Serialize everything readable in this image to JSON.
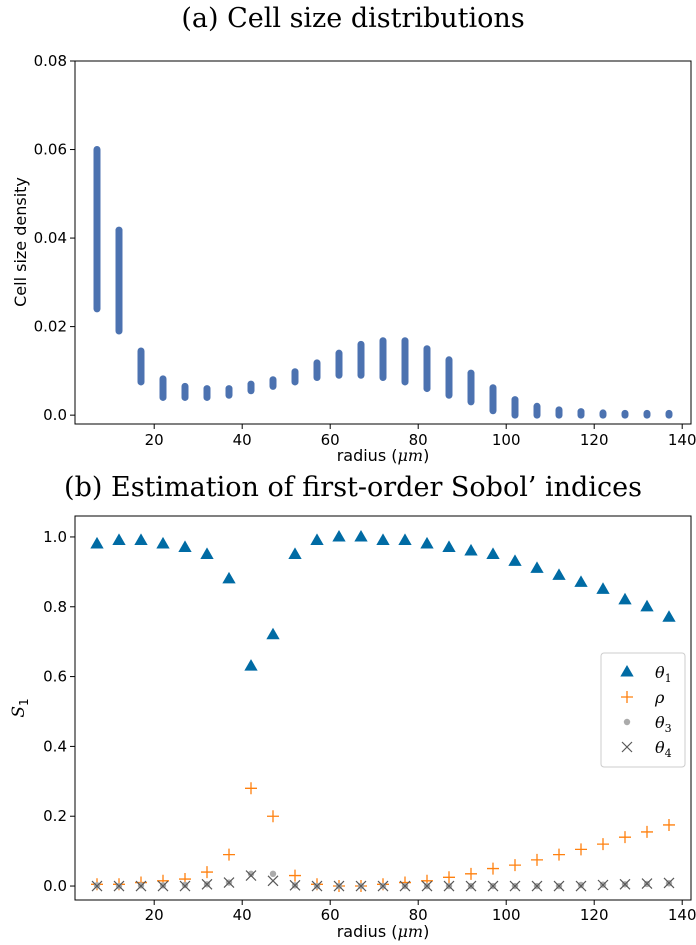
{
  "chart_data": [
    {
      "type": "scatter",
      "title": "(a) Cell size distributions",
      "xlabel": "radius (μm)",
      "ylabel": "Cell size density",
      "xlim": [
        2,
        142
      ],
      "ylim": [
        -0.002,
        0.08
      ],
      "xticks": [
        "20",
        "40",
        "60",
        "80",
        "100",
        "120",
        "140"
      ],
      "yticks": [
        "0.0",
        "0.02",
        "0.04",
        "0.06",
        "0.08"
      ],
      "color": "#4c72b0",
      "grid": false,
      "series": [
        {
          "x": [
            7,
            12,
            17,
            22,
            27,
            32,
            37,
            42,
            47,
            52,
            57,
            62,
            67,
            72,
            77,
            82,
            87,
            92,
            97,
            102,
            107,
            112,
            117,
            122,
            127,
            132,
            137
          ],
          "y_min": [
            0.024,
            0.019,
            0.0075,
            0.004,
            0.004,
            0.004,
            0.0045,
            0.0055,
            0.0065,
            0.0075,
            0.0085,
            0.009,
            0.009,
            0.0085,
            0.0075,
            0.006,
            0.0045,
            0.003,
            0.001,
            0.0,
            0.0,
            0.0,
            0.0,
            0.0,
            0.0,
            0.0,
            0.0
          ],
          "y_max": [
            0.06,
            0.0418,
            0.0145,
            0.0082,
            0.0065,
            0.006,
            0.006,
            0.007,
            0.008,
            0.0098,
            0.0118,
            0.014,
            0.016,
            0.0168,
            0.0168,
            0.015,
            0.0125,
            0.0095,
            0.0062,
            0.0035,
            0.002,
            0.0012,
            0.0008,
            0.0005,
            0.0004,
            0.0004,
            0.0004
          ]
        }
      ]
    },
    {
      "type": "scatter",
      "title": "(b) Estimation of first-order Sobol’ indices",
      "xlabel": "radius (μm)",
      "ylabel": "S1",
      "xlim": [
        2,
        142
      ],
      "ylim": [
        -0.04,
        1.06
      ],
      "xticks": [
        "20",
        "40",
        "60",
        "80",
        "100",
        "120",
        "140"
      ],
      "yticks": [
        "0.0",
        "0.2",
        "0.4",
        "0.6",
        "0.8",
        "1.0"
      ],
      "grid": false,
      "legend_position": "center-right",
      "x": [
        7,
        12,
        17,
        22,
        27,
        32,
        37,
        42,
        47,
        52,
        57,
        62,
        67,
        72,
        77,
        82,
        87,
        92,
        97,
        102,
        107,
        112,
        117,
        122,
        127,
        132,
        137
      ],
      "series": [
        {
          "name": "θ1",
          "marker": "triangle",
          "color": "#006ba4",
          "values": [
            0.98,
            0.99,
            0.99,
            0.98,
            0.97,
            0.95,
            0.88,
            0.63,
            0.72,
            0.95,
            0.99,
            1.0,
            1.0,
            0.99,
            0.99,
            0.98,
            0.97,
            0.96,
            0.95,
            0.93,
            0.91,
            0.89,
            0.87,
            0.85,
            0.82,
            0.8,
            0.77
          ]
        },
        {
          "name": "ρ",
          "marker": "plus",
          "color": "#ff800e",
          "values": [
            0.005,
            0.005,
            0.01,
            0.015,
            0.02,
            0.04,
            0.09,
            0.28,
            0.2,
            0.03,
            0.005,
            0.0,
            0.0,
            0.005,
            0.01,
            0.015,
            0.025,
            0.035,
            0.05,
            0.06,
            0.075,
            0.09,
            0.105,
            0.12,
            0.14,
            0.155,
            0.175
          ]
        },
        {
          "name": "θ3",
          "marker": "dot",
          "color": "#ababab",
          "values": [
            0.002,
            0.0,
            0.002,
            0.002,
            0.003,
            0.005,
            0.01,
            0.035,
            0.035,
            0.002,
            0.0,
            0.0,
            0.0,
            0.0,
            0.0,
            0.0,
            0.0,
            0.0,
            0.0,
            0.0,
            0.0,
            0.0,
            0.003,
            0.004,
            0.005,
            0.006,
            0.008
          ]
        },
        {
          "name": "θ4",
          "marker": "x",
          "color": "#595959",
          "values": [
            0.0,
            0.0,
            0.0,
            0.0,
            0.0,
            0.005,
            0.01,
            0.03,
            0.015,
            0.002,
            0.0,
            0.0,
            0.0,
            0.0,
            0.0,
            0.0,
            0.0,
            0.0,
            0.0,
            0.0,
            0.0,
            0.0,
            0.0,
            0.003,
            0.005,
            0.007,
            0.009
          ]
        }
      ]
    }
  ]
}
